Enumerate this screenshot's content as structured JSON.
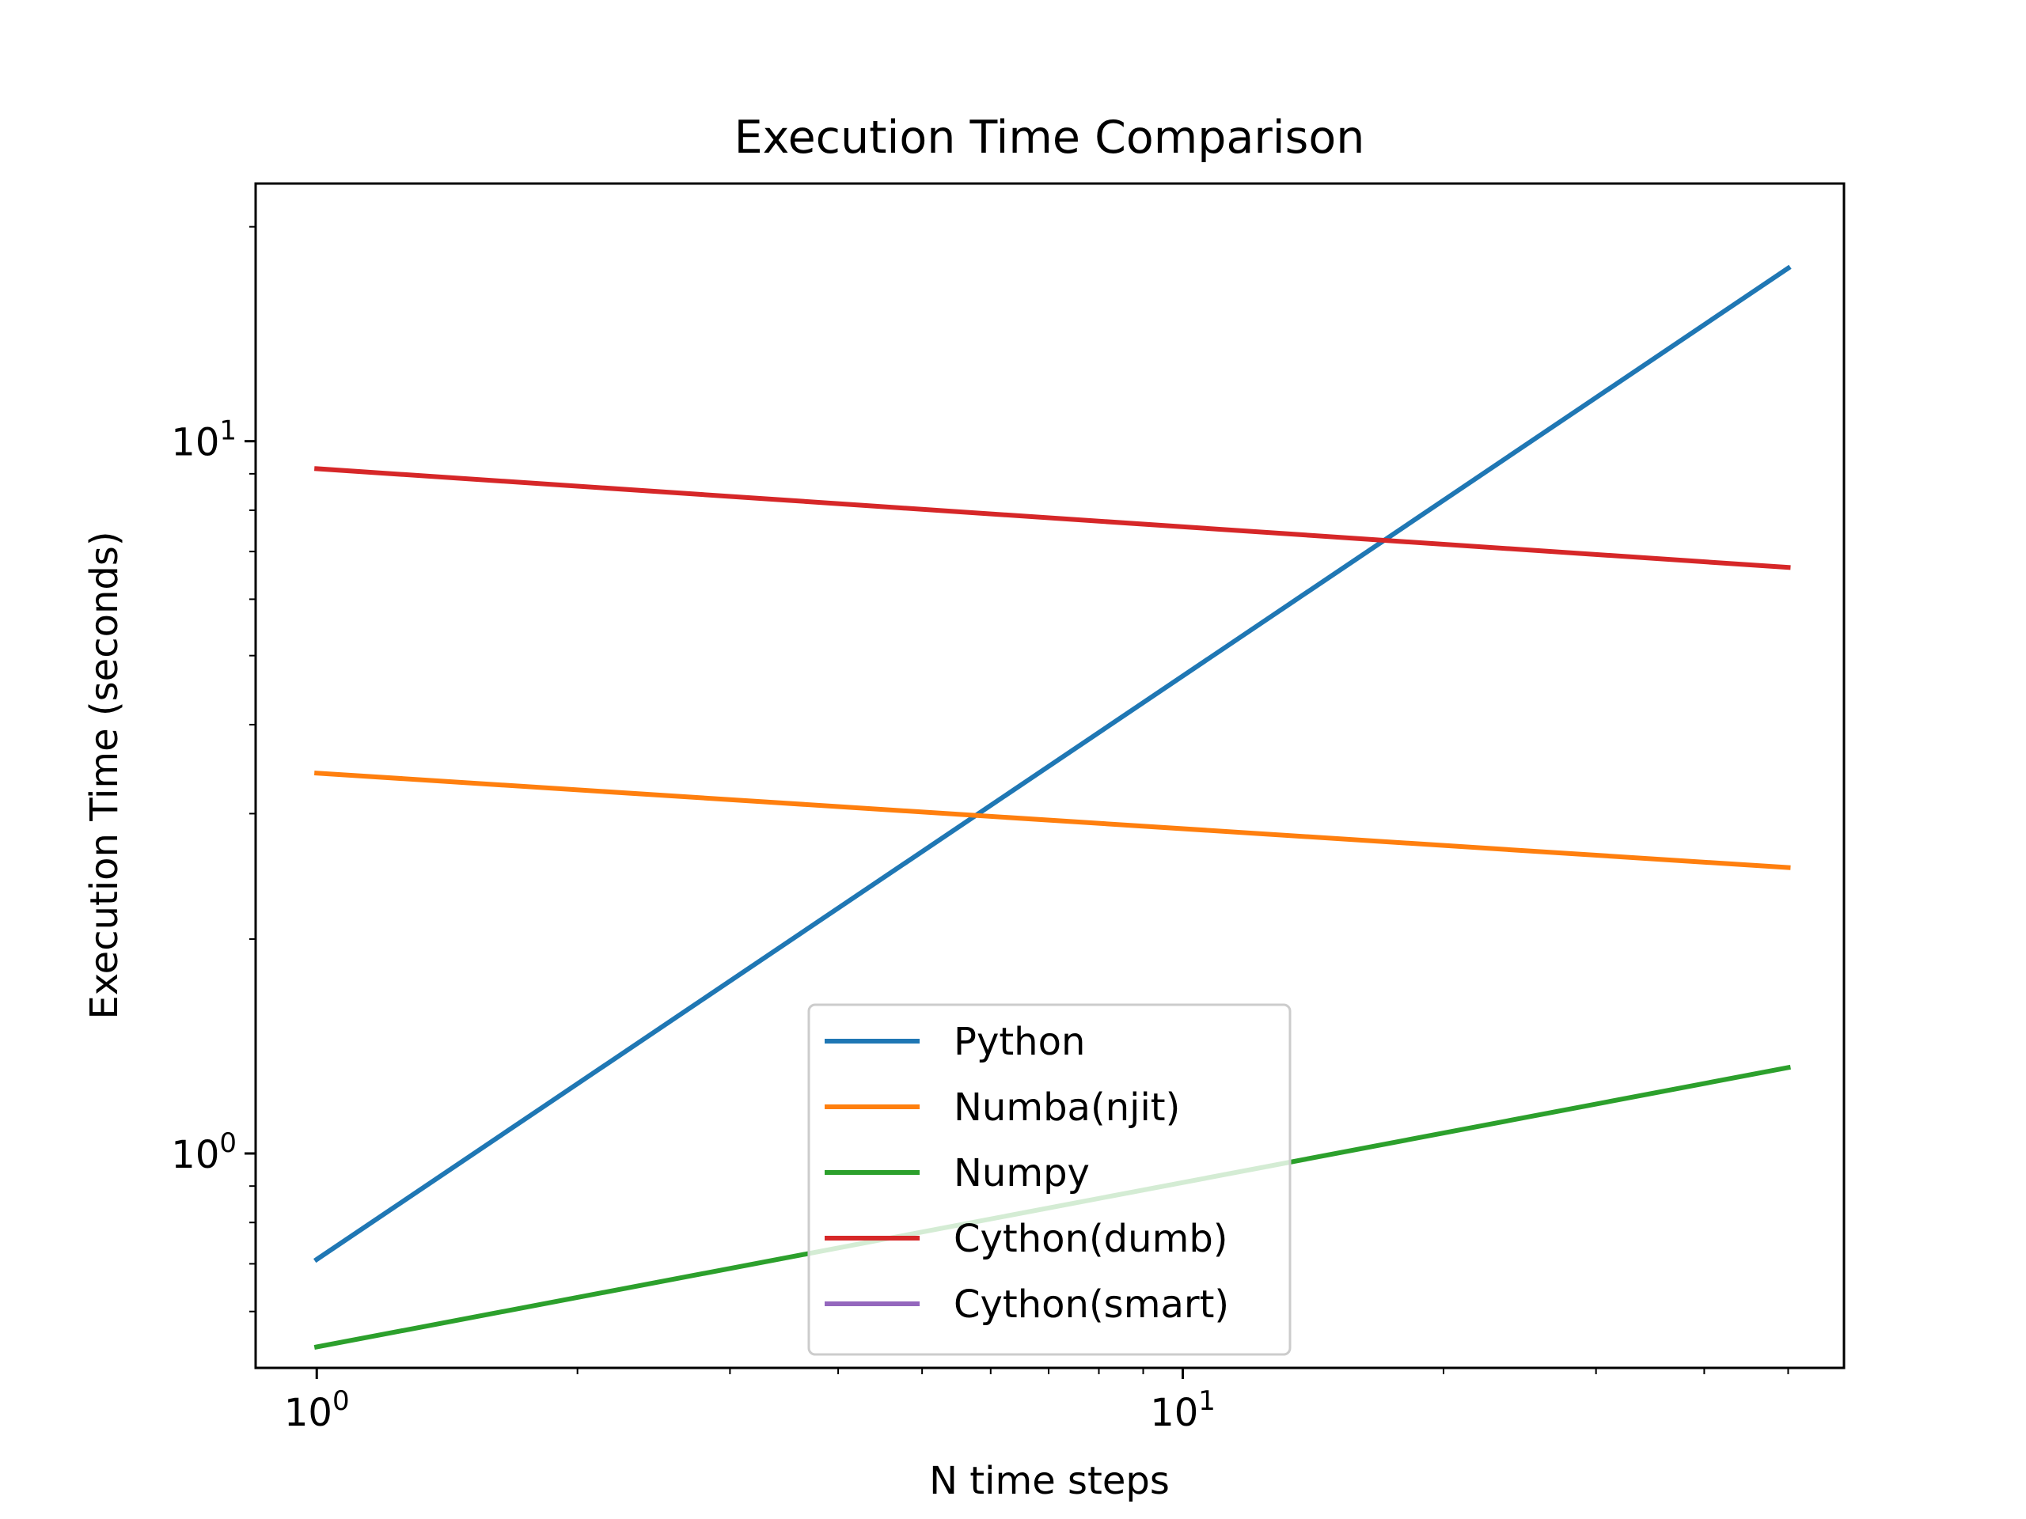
{
  "chart_data": {
    "type": "line",
    "title": "Execution Time Comparison",
    "xlabel": "N time steps",
    "ylabel": "Execution Time (seconds)",
    "x_scale": "log",
    "y_scale": "log",
    "xlim": [
      0.85,
      58
    ],
    "ylim": [
      0.5,
      23
    ],
    "x_ticks": [
      {
        "value": 1,
        "base": "10",
        "exp": "0"
      },
      {
        "value": 10,
        "base": "10",
        "exp": "1"
      }
    ],
    "y_ticks": [
      {
        "value": 1,
        "base": "10",
        "exp": "0"
      },
      {
        "value": 10,
        "base": "10",
        "exp": "1"
      }
    ],
    "x_minor_ticks": [
      2,
      3,
      4,
      5,
      6,
      7,
      8,
      9,
      20,
      30,
      40,
      50
    ],
    "y_minor_ticks": [
      0.6,
      0.7,
      0.8,
      0.9,
      2,
      3,
      4,
      5,
      6,
      7,
      8,
      9,
      20
    ],
    "grid": false,
    "legend_position": "lower center",
    "series": [
      {
        "name": "Python",
        "color": "#1f77b4",
        "x": [
          1,
          50
        ],
        "y": [
          0.71,
          17.5
        ]
      },
      {
        "name": "Numba(njit)",
        "color": "#ff7f0e",
        "x": [
          1,
          50
        ],
        "y": [
          3.42,
          2.52
        ]
      },
      {
        "name": "Numpy",
        "color": "#2ca02c",
        "x": [
          1,
          50
        ],
        "y": [
          0.535,
          1.32
        ]
      },
      {
        "name": "Cython(dumb)",
        "color": "#d62728",
        "x": [
          1,
          50
        ],
        "y": [
          9.15,
          6.65
        ]
      },
      {
        "name": "Cython(smart)",
        "color": "#9467bd",
        "x": [],
        "y": []
      }
    ]
  }
}
